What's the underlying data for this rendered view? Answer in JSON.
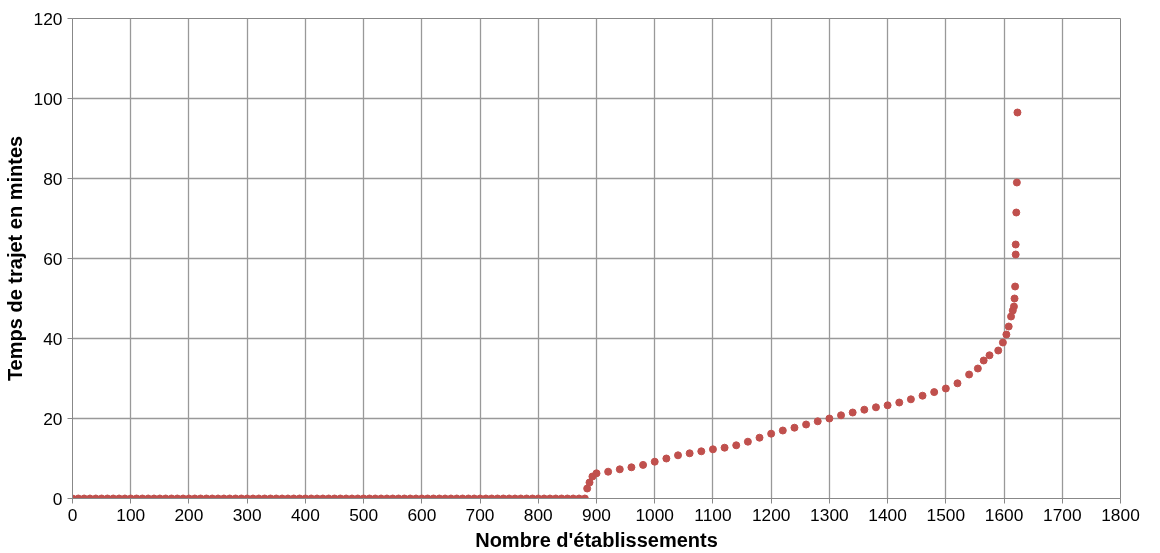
{
  "chart_data": {
    "type": "scatter",
    "xlabel": "Nombre d'établissements",
    "ylabel": "Temps de trajet en mintes",
    "xlim": [
      0,
      1800
    ],
    "xticks": [
      0,
      100,
      200,
      300,
      400,
      500,
      600,
      700,
      800,
      900,
      1000,
      1100,
      1200,
      1300,
      1400,
      1500,
      1600,
      1700,
      1800
    ],
    "ylim": [
      0,
      120
    ],
    "yticks": [
      0,
      20,
      40,
      60,
      80,
      100,
      120
    ],
    "grid": true,
    "marker": "circle",
    "series": [
      {
        "color": "#c0504d",
        "x": [
          0,
          10,
          20,
          30,
          40,
          50,
          60,
          70,
          80,
          90,
          100,
          110,
          120,
          130,
          140,
          150,
          160,
          170,
          180,
          190,
          200,
          210,
          220,
          230,
          240,
          250,
          260,
          270,
          280,
          290,
          300,
          310,
          320,
          330,
          340,
          350,
          360,
          370,
          380,
          390,
          400,
          410,
          420,
          430,
          440,
          450,
          460,
          470,
          480,
          490,
          500,
          510,
          520,
          530,
          540,
          550,
          560,
          570,
          580,
          590,
          600,
          610,
          620,
          630,
          640,
          650,
          660,
          670,
          680,
          690,
          700,
          710,
          720,
          730,
          740,
          750,
          760,
          770,
          780,
          790,
          800,
          810,
          820,
          830,
          840,
          850,
          860,
          870,
          880,
          884,
          888,
          893,
          900,
          920,
          940,
          960,
          980,
          1000,
          1020,
          1040,
          1060,
          1080,
          1100,
          1120,
          1140,
          1160,
          1180,
          1200,
          1220,
          1240,
          1260,
          1280,
          1300,
          1320,
          1340,
          1360,
          1380,
          1400,
          1420,
          1440,
          1460,
          1480,
          1500,
          1520,
          1540,
          1555,
          1565,
          1575,
          1590,
          1598,
          1604,
          1608,
          1612,
          1615,
          1617,
          1618,
          1619,
          1620,
          1620,
          1621,
          1622,
          1623
        ],
        "values": [
          0,
          0,
          0,
          0,
          0,
          0,
          0,
          0,
          0,
          0,
          0,
          0,
          0,
          0,
          0,
          0,
          0,
          0,
          0,
          0,
          0,
          0,
          0,
          0,
          0,
          0,
          0,
          0,
          0,
          0,
          0,
          0,
          0,
          0,
          0,
          0,
          0,
          0,
          0,
          0,
          0,
          0,
          0,
          0,
          0,
          0,
          0,
          0,
          0,
          0,
          0,
          0,
          0,
          0,
          0,
          0,
          0,
          0,
          0,
          0,
          0,
          0,
          0,
          0,
          0,
          0,
          0,
          0,
          0,
          0,
          0,
          0,
          0,
          0,
          0,
          0,
          0,
          0,
          0,
          0,
          0,
          0,
          0,
          0,
          0,
          0,
          0,
          0,
          0,
          2.5,
          4,
          5.5,
          6.3,
          6.7,
          7.3,
          7.8,
          8.4,
          9.2,
          10,
          10.8,
          11.3,
          11.8,
          12.3,
          12.7,
          13.3,
          14.2,
          15.2,
          16.2,
          17,
          17.7,
          18.5,
          19.3,
          20,
          20.8,
          21.5,
          22.2,
          22.8,
          23.3,
          24,
          24.8,
          25.7,
          26.6,
          27.5,
          28.8,
          31,
          32.5,
          34.5,
          35.8,
          37,
          39,
          41,
          43,
          45.5,
          47,
          48,
          50,
          53,
          61,
          63.5,
          71.5,
          79,
          96.5
        ]
      }
    ]
  }
}
